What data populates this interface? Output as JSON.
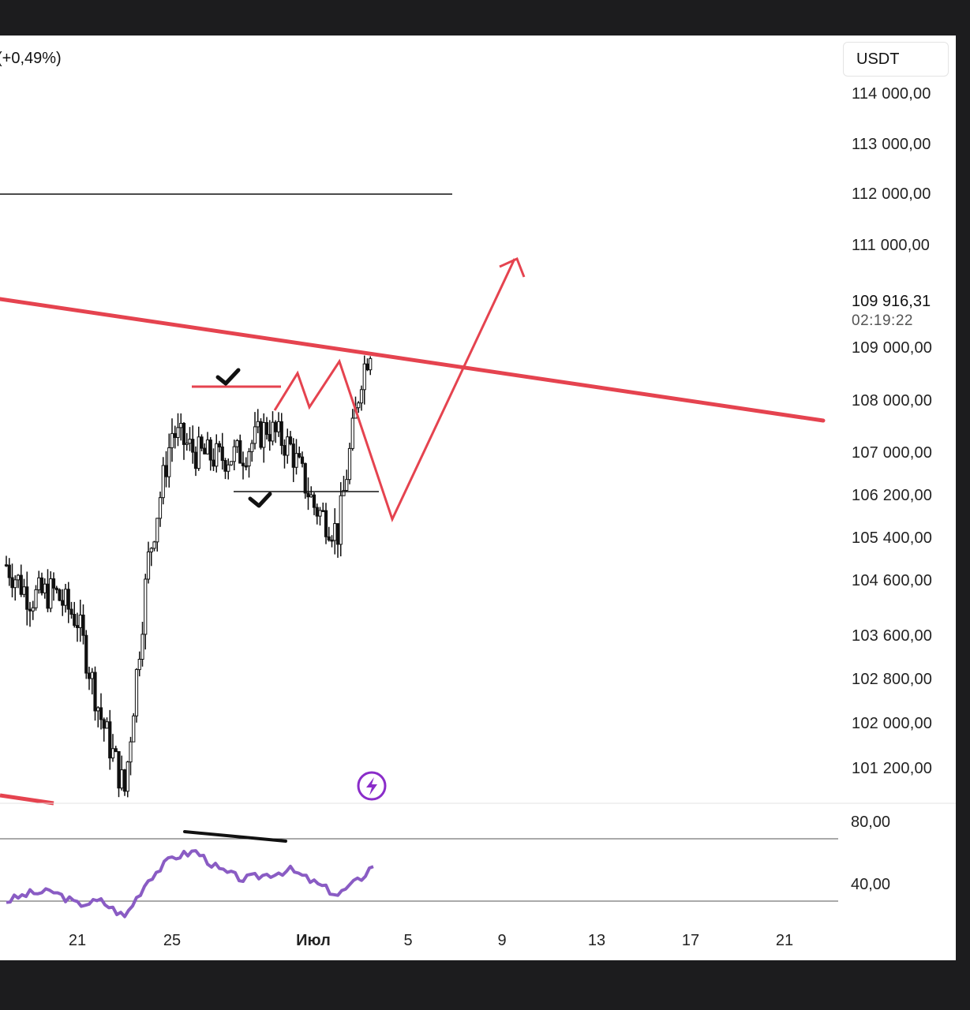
{
  "header": {
    "change": "(+0,49%)",
    "currency": "USDT"
  },
  "price_axis": {
    "ticks": [
      "114 000,00",
      "113 000,00",
      "112 000,00",
      "111 000,00",
      "109 000,00",
      "108 000,00",
      "107 000,00",
      "106 200,00",
      "105 400,00",
      "104 600,00",
      "103 600,00",
      "102 800,00",
      "102 000,00",
      "101 200,00"
    ],
    "last_price": "109 916,31",
    "countdown": "02:19:22"
  },
  "rsi_axis": {
    "ticks": [
      "80,00",
      "40,00"
    ]
  },
  "time_axis": {
    "ticks": [
      "21",
      "25",
      "Июл",
      "5",
      "9",
      "13",
      "17",
      "21"
    ]
  },
  "colors": {
    "trendline": "#e5434f",
    "rsi": "#8a5cc4",
    "candle": "#111111",
    "lightning": "#8a2cc9"
  },
  "icons": {
    "lightning": "lightning-icon",
    "checkmark": "checkmark-icon"
  },
  "chart_data": [
    {
      "type": "candlestick",
      "title": "",
      "xlabel": "",
      "ylabel": "USDT",
      "x_ticks": [
        "21",
        "25",
        "Июл",
        "5",
        "9",
        "13",
        "17",
        "21"
      ],
      "y_ticks": [
        114000,
        113000,
        112000,
        111000,
        109000,
        108000,
        107000,
        106200,
        105400,
        104600,
        103600,
        102800,
        102000,
        101200
      ],
      "last_price": 109916.31,
      "price_path": [
        {
          "x": "18",
          "y": 104900
        },
        {
          "x": "19",
          "y": 104300
        },
        {
          "x": "20",
          "y": 104400
        },
        {
          "x": "21",
          "y": 103900
        },
        {
          "x": "22",
          "y": 102100
        },
        {
          "x": "23",
          "y": 100800
        },
        {
          "x": "24",
          "y": 105000
        },
        {
          "x": "25",
          "y": 107400
        },
        {
          "x": "26",
          "y": 107000
        },
        {
          "x": "27",
          "y": 106900
        },
        {
          "x": "28",
          "y": 107000
        },
        {
          "x": "29",
          "y": 107500
        },
        {
          "x": "30",
          "y": 107100
        },
        {
          "x": "Июл",
          "y": 106000
        },
        {
          "x": "2",
          "y": 105500
        },
        {
          "x": "3",
          "y": 108500
        },
        {
          "x": "4",
          "y": 109916.31
        }
      ],
      "levels": [
        112000,
        106400,
        108300
      ],
      "projection": [
        108600,
        106100,
        111000
      ]
    },
    {
      "type": "line",
      "title": "",
      "ylim": [
        40,
        80
      ],
      "levels": [
        80,
        40
      ],
      "x": [
        "18",
        "19",
        "20",
        "21",
        "22",
        "23",
        "24",
        "25",
        "26",
        "27",
        "28",
        "29",
        "30",
        "Июл",
        "2",
        "3",
        "4"
      ],
      "values": [
        40,
        45,
        46,
        38,
        40,
        30,
        54,
        68,
        72,
        60,
        54,
        57,
        60,
        52,
        44,
        55,
        72
      ]
    }
  ]
}
